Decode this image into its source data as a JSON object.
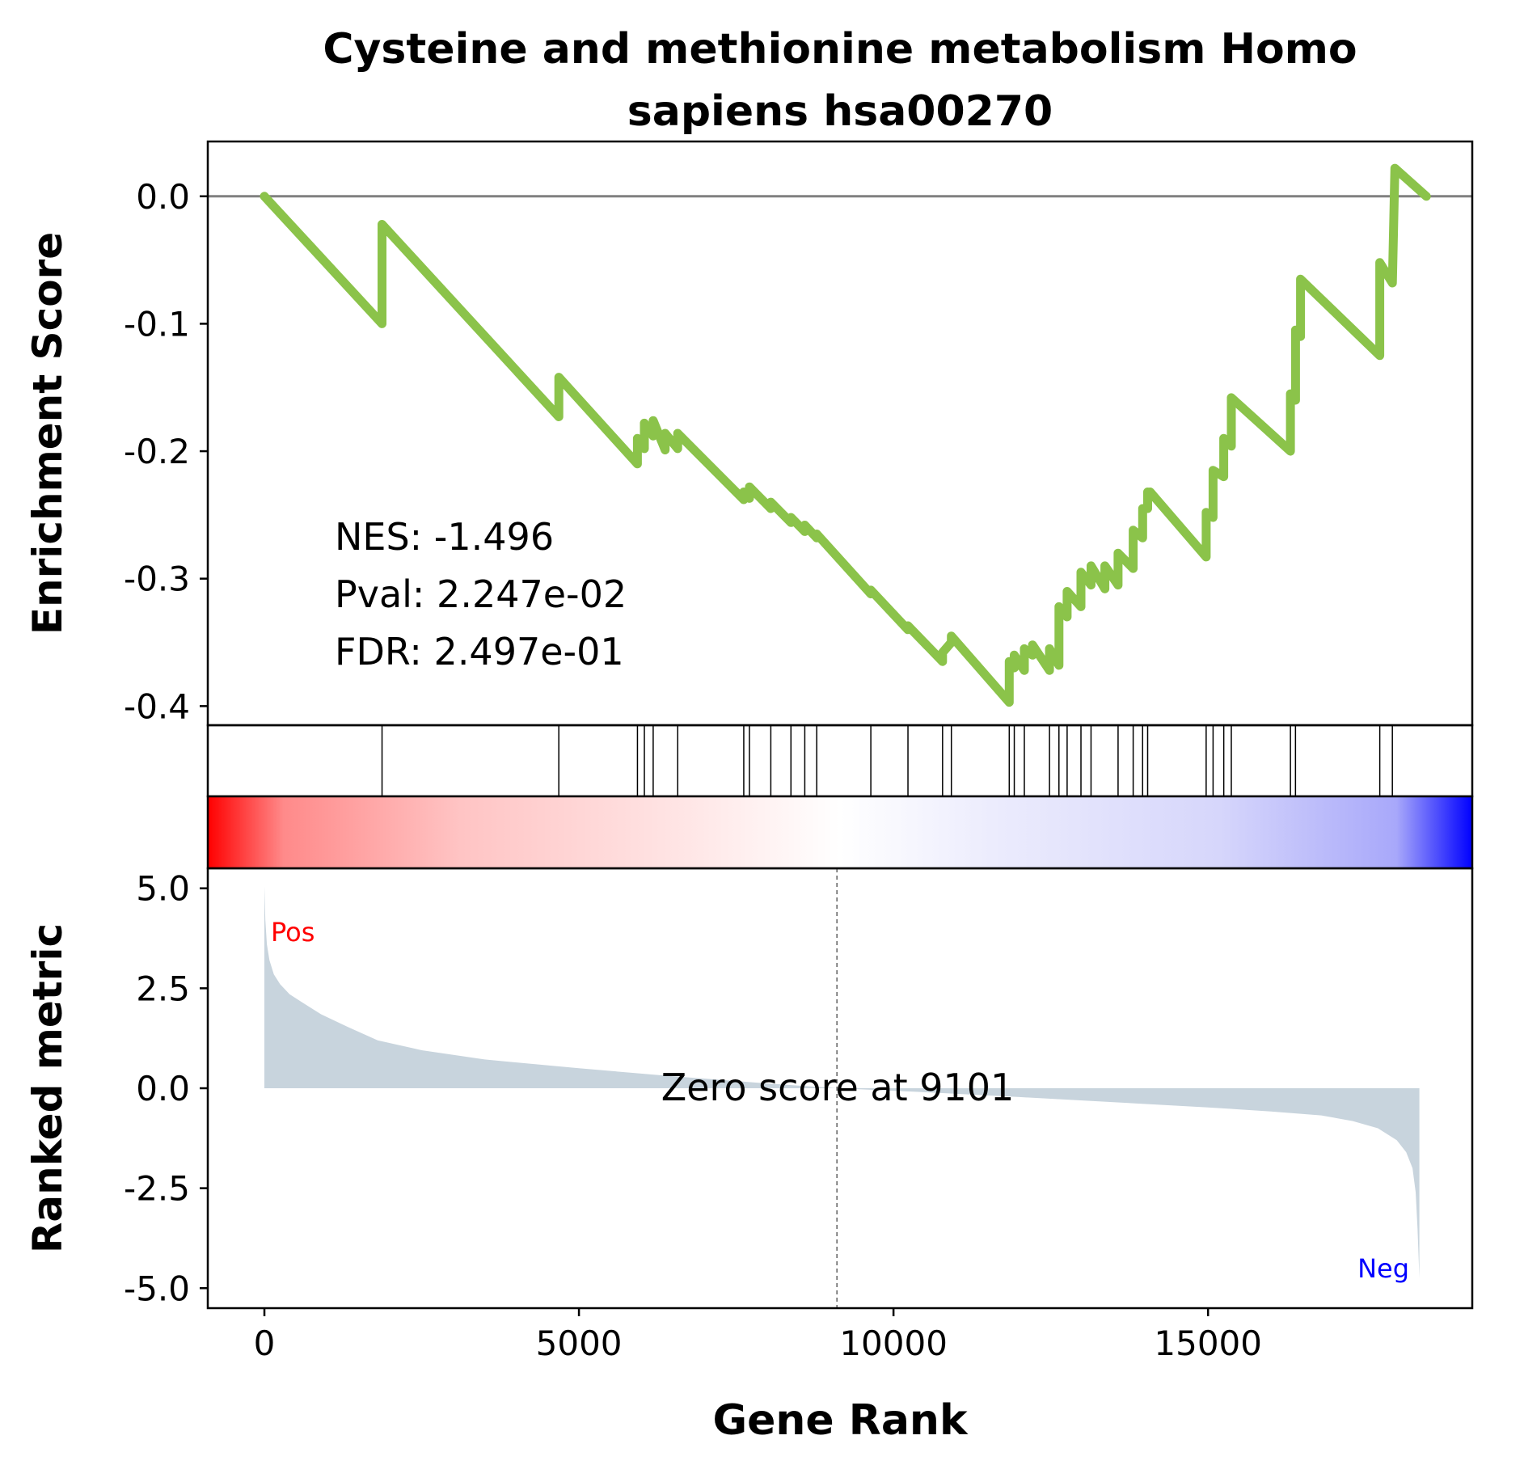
{
  "chart_data": {
    "type": "line",
    "title_line1": "Cysteine and methionine metabolism Homo",
    "title_line2": "sapiens hsa00270",
    "ylabel_top": "Enrichment Score",
    "ylabel_bottom": "Ranked metric",
    "xlabel": "Gene Rank",
    "stats": {
      "nes": "NES: -1.496",
      "pval": "Pval: 2.247e-02",
      "fdr": "FDR: 2.497e-01"
    },
    "zero_score_label": "Zero score at 9101",
    "zero_score_rank": 9101,
    "pos_label": "Pos",
    "neg_label": "Neg",
    "colors": {
      "es_line": "#8bc34a",
      "zero_line": "#808080",
      "metric_fill": "#c8d4dd",
      "pos": "#ff0000",
      "neg": "#0000ff"
    },
    "xlim": [
      -900,
      19200
    ],
    "es_ylim": [
      -0.415,
      0.043
    ],
    "metric_ylim": [
      -5.5,
      5.5
    ],
    "x_ticks": [
      "0",
      "5000",
      "10000",
      "15000"
    ],
    "x_tick_values": [
      0,
      5000,
      10000,
      15000
    ],
    "es_ticks": [
      "0.0",
      "-0.1",
      "-0.2",
      "-0.3",
      "-0.4"
    ],
    "es_tick_values": [
      0.0,
      -0.1,
      -0.2,
      -0.3,
      -0.4
    ],
    "metric_ticks": [
      "5.0",
      "2.5",
      "0.0",
      "-2.5",
      "-5.0"
    ],
    "metric_tick_values": [
      5.0,
      2.5,
      0.0,
      -2.5,
      -5.0
    ],
    "es_curve": {
      "x": [
        0,
        1870,
        1870,
        4680,
        4680,
        5930,
        5930,
        6040,
        6040,
        6180,
        6180,
        6370,
        6370,
        6570,
        6570,
        7620,
        7620,
        7710,
        7710,
        8050,
        8050,
        8370,
        8370,
        8590,
        8590,
        8780,
        8780,
        9640,
        9640,
        10230,
        10230,
        10780,
        10780,
        10920,
        10920,
        11840,
        11840,
        11920,
        11920,
        12080,
        12080,
        12210,
        12210,
        12480,
        12480,
        12630,
        12630,
        12760,
        12760,
        12980,
        12980,
        13140,
        13140,
        13360,
        13360,
        13570,
        13570,
        13810,
        13810,
        13960,
        13960,
        14040,
        14040,
        14080,
        14080,
        14970,
        14970,
        15080,
        15080,
        15250,
        15250,
        15370,
        15370,
        16310,
        16310,
        16390,
        16390,
        16470,
        16470,
        17730,
        17730,
        17930,
        17930,
        17970,
        17970,
        18470
      ],
      "y": [
        0.0,
        -0.1,
        -0.022,
        -0.173,
        -0.142,
        -0.21,
        -0.19,
        -0.198,
        -0.178,
        -0.188,
        -0.176,
        -0.199,
        -0.186,
        -0.198,
        -0.186,
        -0.238,
        -0.232,
        -0.237,
        -0.228,
        -0.245,
        -0.24,
        -0.256,
        -0.252,
        -0.263,
        -0.258,
        -0.268,
        -0.265,
        -0.312,
        -0.309,
        -0.34,
        -0.337,
        -0.365,
        -0.358,
        -0.35,
        -0.345,
        -0.397,
        -0.365,
        -0.37,
        -0.36,
        -0.372,
        -0.355,
        -0.36,
        -0.352,
        -0.372,
        -0.355,
        -0.368,
        -0.322,
        -0.33,
        -0.31,
        -0.322,
        -0.295,
        -0.305,
        -0.29,
        -0.308,
        -0.29,
        -0.305,
        -0.28,
        -0.292,
        -0.262,
        -0.268,
        -0.245,
        -0.245,
        -0.232,
        -0.234,
        -0.232,
        -0.283,
        -0.248,
        -0.252,
        -0.215,
        -0.22,
        -0.19,
        -0.196,
        -0.158,
        -0.2,
        -0.155,
        -0.16,
        -0.105,
        -0.11,
        -0.065,
        -0.125,
        -0.052,
        -0.068,
        -0.068,
        0.022,
        0.022,
        0.0
      ]
    },
    "hits": [
      1870,
      4680,
      5930,
      6040,
      6180,
      6570,
      7620,
      7710,
      8050,
      8370,
      8590,
      8780,
      9640,
      10230,
      10780,
      10920,
      11840,
      11920,
      12080,
      12480,
      12630,
      12760,
      12980,
      13140,
      13570,
      13810,
      13960,
      14040,
      14970,
      15080,
      15250,
      15370,
      16310,
      16390,
      17730,
      17930
    ],
    "metric_curve": {
      "rank": [
        0,
        15,
        40,
        80,
        150,
        250,
        400,
        600,
        900,
        1300,
        1800,
        2500,
        3500,
        5000,
        6500,
        8000,
        9101,
        10500,
        12000,
        13500,
        15000,
        16000,
        16800,
        17300,
        17700,
        18000,
        18150,
        18250,
        18300,
        18330,
        18360
      ],
      "value": [
        5.05,
        4.2,
        3.6,
        3.2,
        2.85,
        2.6,
        2.35,
        2.15,
        1.85,
        1.55,
        1.2,
        0.95,
        0.72,
        0.5,
        0.3,
        0.12,
        0.0,
        -0.1,
        -0.22,
        -0.35,
        -0.48,
        -0.58,
        -0.68,
        -0.82,
        -1.0,
        -1.3,
        -1.6,
        -2.0,
        -2.6,
        -3.5,
        -4.75
      ]
    }
  }
}
